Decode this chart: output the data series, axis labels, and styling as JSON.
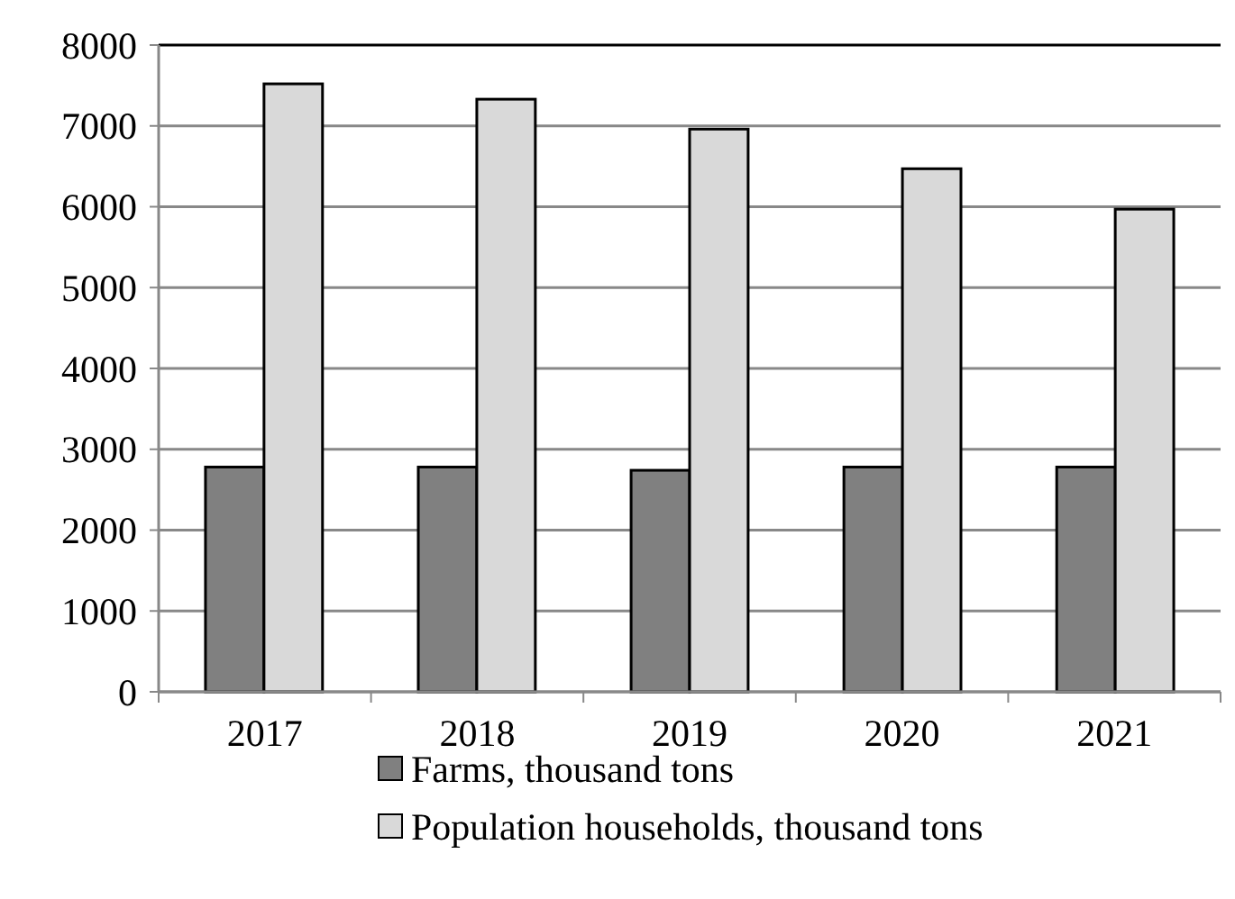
{
  "chart_data": {
    "type": "bar",
    "categories": [
      "2017",
      "2018",
      "2019",
      "2020",
      "2021"
    ],
    "series": [
      {
        "name": "Farms, thousand tons",
        "color": "#808080",
        "values": [
          2780,
          2780,
          2740,
          2780,
          2780
        ]
      },
      {
        "name": "Population households, thousand tons",
        "color": "#d9d9d9",
        "values": [
          7520,
          7330,
          6960,
          6470,
          5970
        ]
      }
    ],
    "ylim": [
      0,
      8000
    ],
    "yticks": [
      0,
      1000,
      2000,
      3000,
      4000,
      5000,
      6000,
      7000,
      8000
    ],
    "grid": "y",
    "legend": "bottom"
  }
}
